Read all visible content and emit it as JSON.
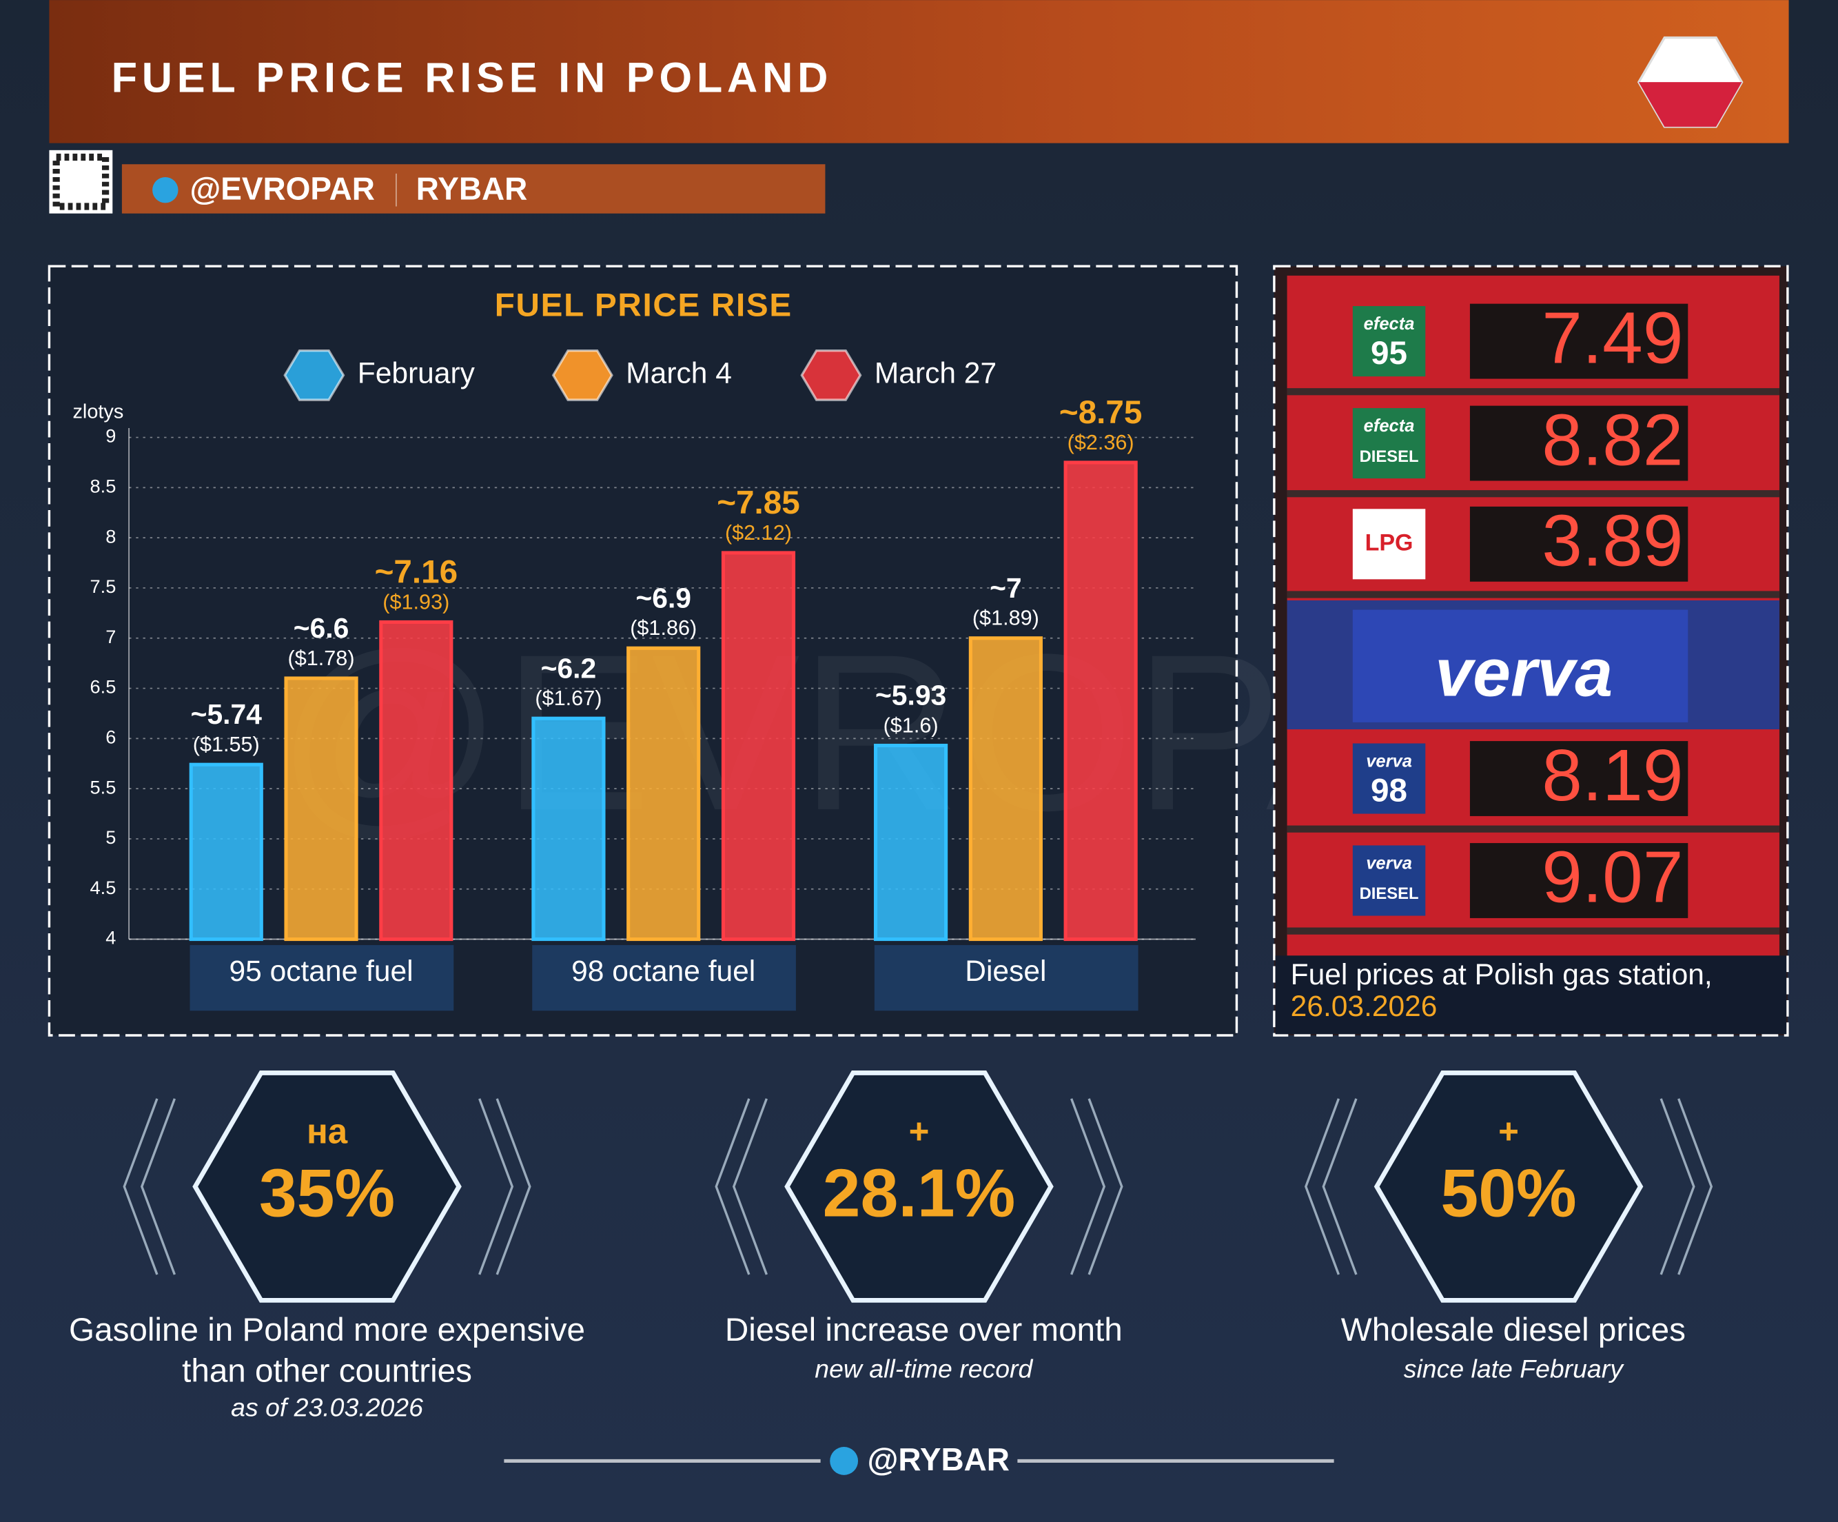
{
  "header": {
    "title": "FUEL PRICE RISE IN POLAND",
    "channel": "@EVROPAR",
    "brand": "RYBAR"
  },
  "watermark": "@EVROPAR",
  "chart_data": {
    "type": "bar",
    "title": "FUEL PRICE RISE",
    "ylabel": "zlotys",
    "categories": [
      "95 octane fuel",
      "98 octane fuel",
      "Diesel"
    ],
    "series": [
      {
        "name": "February",
        "color": "#2a9fd8",
        "values": [
          5.74,
          6.2,
          5.93
        ],
        "value_labels": [
          "~5.74",
          "~6.2",
          "~5.93"
        ],
        "usd_labels": [
          "($1.55)",
          "($1.67)",
          "($1.6)"
        ]
      },
      {
        "name": "March 4",
        "color": "#f0922a",
        "values": [
          6.6,
          6.9,
          7
        ],
        "value_labels": [
          "~6.6",
          "~6.9",
          "~7"
        ],
        "usd_labels": [
          "($1.78)",
          "($1.86)",
          "($1.89)"
        ]
      },
      {
        "name": "March 27",
        "color": "#d8333a",
        "values": [
          7.16,
          7.85,
          8.75
        ],
        "value_labels": [
          "~7.16",
          "~7.85",
          "~8.75"
        ],
        "usd_labels": [
          "($1.93)",
          "($2.12)",
          "($2.36)"
        ]
      }
    ],
    "ylim": [
      4,
      9
    ],
    "yticks": [
      4,
      4.5,
      5,
      5.5,
      6,
      6.5,
      7,
      7.5,
      8,
      8.5,
      9
    ],
    "grid": true
  },
  "photo": {
    "rows": [
      {
        "brand": "efecta",
        "grade": "95",
        "price": 7.49
      },
      {
        "brand": "efecta",
        "grade": "DIESEL",
        "price": 8.82
      },
      {
        "grade": "LPG",
        "price": 3.89
      },
      {
        "brand": "verva",
        "grade": "98",
        "price": 8.19
      },
      {
        "brand": "verva",
        "grade": "DIESEL",
        "price": 9.07
      }
    ],
    "banner": "verva",
    "caption": [
      "Fuel prices at Polish gas station,",
      "26.03.2026"
    ]
  },
  "stats": [
    {
      "prefix": "на",
      "value": "35%",
      "description": [
        "Gasoline in Poland more expensive",
        "than other countries"
      ],
      "note": "as of 23.03.2026"
    },
    {
      "prefix": "+",
      "value": "28.1%",
      "description": [
        "Diesel increase over month"
      ],
      "note": "new all-time record"
    },
    {
      "prefix": "+",
      "value": "50%",
      "description": [
        "Wholesale diesel prices"
      ],
      "note": "since late February"
    }
  ],
  "footer": {
    "handle": "@RYBAR"
  }
}
